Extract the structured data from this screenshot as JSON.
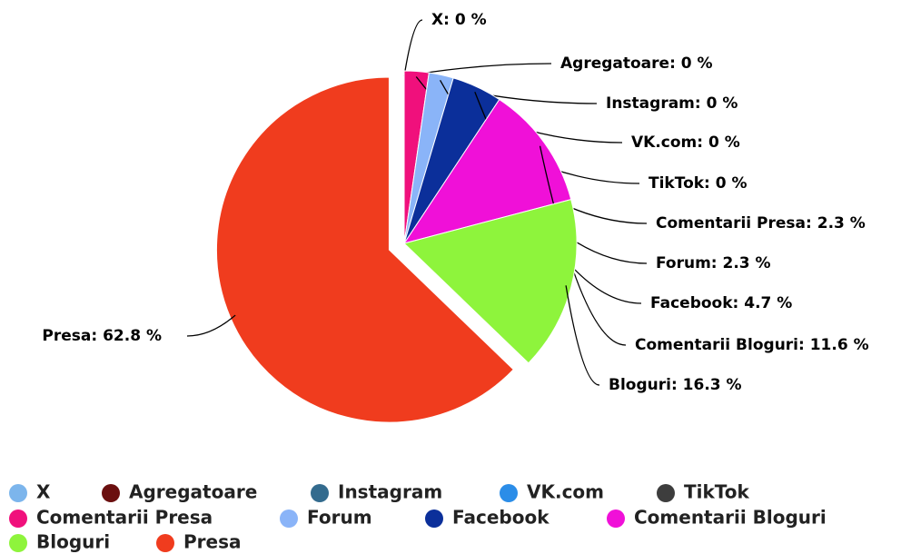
{
  "chart_data": {
    "type": "pie",
    "categories": [
      "X",
      "Agregatoare",
      "Instagram",
      "VK.com",
      "TikTok",
      "Comentarii Presa",
      "Forum",
      "Facebook",
      "Comentarii Bloguri",
      "Bloguri",
      "Presa"
    ],
    "values": [
      0,
      0,
      0,
      0,
      0,
      2.3,
      2.3,
      4.7,
      11.6,
      16.3,
      62.8
    ],
    "value_labels": [
      "X: 0 %",
      "Agregatoare: 0 %",
      "Instagram: 0 %",
      "VK.com: 0 %",
      "TikTok: 0 %",
      "Comentarii Presa: 2.3 %",
      "Forum: 2.3 %",
      "Facebook: 4.7 %",
      "Comentarii Bloguri: 11.6 %",
      "Bloguri: 16.3 %",
      "Presa: 62.8 %"
    ],
    "colors": [
      "#7cb5ec",
      "#6b0f0f",
      "#336b8e",
      "#2b8de8",
      "#3d3d3d",
      "#f0107c",
      "#8ab4f8",
      "#0b2f9a",
      "#f010d8",
      "#8ef43c",
      "#f03c1e"
    ],
    "legend": "bottom"
  }
}
